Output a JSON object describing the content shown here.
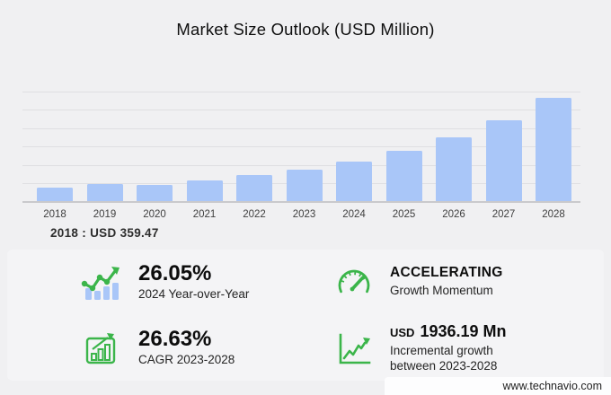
{
  "title": "Market Size Outlook (USD Million)",
  "chart_data": {
    "type": "bar",
    "title": "Market Size Outlook (USD Million)",
    "xlabel": "",
    "ylabel": "USD Million",
    "categories": [
      "2018",
      "2019",
      "2020",
      "2021",
      "2022",
      "2023",
      "2024",
      "2025",
      "2026",
      "2027",
      "2028"
    ],
    "values": [
      359.47,
      452,
      437,
      552,
      700,
      857.55,
      1080.94,
      1368,
      1732,
      2193,
      2793.74
    ],
    "ylim": [
      0,
      3000
    ],
    "gridline_step": 500,
    "grid": true,
    "legend": "none",
    "bar_color": "#a9c6f8"
  },
  "chart_note": {
    "label": "2018 : USD 359.47"
  },
  "stats": [
    {
      "icon": "trend-bars-icon",
      "value": "26.05%",
      "label": "2024 Year-over-Year"
    },
    {
      "icon": "speedometer-icon",
      "value": "ACCELERATING",
      "label": "Growth Momentum"
    },
    {
      "icon": "growth-chart-icon",
      "value": "26.63%",
      "label": "CAGR 2023-2028"
    },
    {
      "icon": "incremental-line-icon",
      "value_prefix": "USD",
      "value": "1936.19 Mn",
      "label_line1": "Incremental growth",
      "label_line2": "between 2023-2028"
    }
  ],
  "footer": {
    "website": "www.technavio.com"
  },
  "colors": {
    "accent_green": "#3bb54a",
    "bar_blue": "#a9c6f8",
    "background": "#f0f0f2",
    "panel": "#f4f4f6"
  }
}
